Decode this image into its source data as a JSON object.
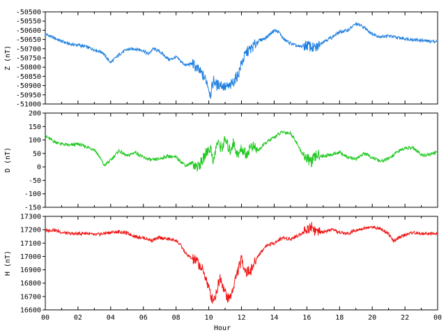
{
  "chart_data": [
    {
      "type": "line",
      "ylabel": "Z (nT)",
      "ylim": [
        -51000,
        -50500
      ],
      "yticks": [
        -50500,
        -50550,
        -50600,
        -50650,
        -50700,
        -50750,
        -50800,
        -50850,
        -50900,
        -50950,
        -51000
      ],
      "xlim": [
        0,
        24
      ],
      "color": "#1E7FE0",
      "grid": false,
      "x": [
        0,
        0.5,
        1,
        1.5,
        2,
        2.5,
        3,
        3.5,
        3.8,
        4.0,
        4.3,
        4.6,
        5.0,
        5.5,
        6.0,
        6.3,
        6.6,
        7.0,
        7.3,
        7.6,
        8.0,
        8.3,
        8.6,
        9.0,
        9.3,
        9.6,
        9.9,
        10.1,
        10.3,
        10.5,
        10.7,
        11.0,
        11.3,
        11.5,
        11.8,
        12.0,
        12.3,
        12.6,
        13.0,
        13.5,
        14.0,
        14.3,
        14.6,
        15.0,
        15.5,
        16.0,
        16.5,
        17.0,
        17.5,
        18.0,
        18.5,
        19.0,
        19.3,
        19.6,
        20.0,
        20.5,
        21.0,
        21.5,
        22.0,
        22.5,
        23.0,
        23.5,
        24.0
      ],
      "values": [
        -50620,
        -50640,
        -50660,
        -50675,
        -50680,
        -50690,
        -50705,
        -50720,
        -50755,
        -50775,
        -50750,
        -50725,
        -50705,
        -50700,
        -50710,
        -50730,
        -50700,
        -50715,
        -50740,
        -50760,
        -50745,
        -50770,
        -50790,
        -50780,
        -50810,
        -50840,
        -50880,
        -50950,
        -50870,
        -50900,
        -50890,
        -50910,
        -50905,
        -50880,
        -50840,
        -50780,
        -50720,
        -50700,
        -50660,
        -50640,
        -50600,
        -50610,
        -50650,
        -50670,
        -50690,
        -50680,
        -50700,
        -50660,
        -50640,
        -50610,
        -50600,
        -50565,
        -50575,
        -50590,
        -50620,
        -50635,
        -50630,
        -50640,
        -50645,
        -50650,
        -50655,
        -50660,
        -50660
      ]
    },
    {
      "type": "line",
      "ylabel": "D (nT)",
      "ylim": [
        -150,
        200
      ],
      "yticks": [
        200,
        150,
        100,
        50,
        0,
        -50,
        -100,
        -150
      ],
      "xlim": [
        0,
        24
      ],
      "color": "#1EC81E",
      "grid": false,
      "x": [
        0,
        0.5,
        1,
        1.5,
        2,
        2.5,
        3,
        3.3,
        3.6,
        4.0,
        4.5,
        5.0,
        5.5,
        6.0,
        6.5,
        7.0,
        7.5,
        8.0,
        8.3,
        8.6,
        9.0,
        9.3,
        9.6,
        9.9,
        10.1,
        10.3,
        10.5,
        10.8,
        11.0,
        11.3,
        11.5,
        11.8,
        12.0,
        12.3,
        12.6,
        13.0,
        13.5,
        14.0,
        14.5,
        15.0,
        15.3,
        15.6,
        16.0,
        16.3,
        16.6,
        17.0,
        17.5,
        18.0,
        18.5,
        19.0,
        19.5,
        20.0,
        20.5,
        21.0,
        21.5,
        22.0,
        22.5,
        23.0,
        23.5,
        24.0
      ],
      "values": [
        115,
        95,
        85,
        80,
        85,
        75,
        65,
        40,
        5,
        25,
        60,
        40,
        55,
        35,
        25,
        30,
        40,
        35,
        20,
        5,
        15,
        0,
        20,
        60,
        70,
        20,
        90,
        70,
        100,
        60,
        90,
        40,
        70,
        45,
        80,
        60,
        90,
        110,
        130,
        125,
        100,
        60,
        30,
        20,
        45,
        40,
        45,
        55,
        35,
        30,
        50,
        35,
        20,
        30,
        55,
        70,
        70,
        45,
        45,
        55
      ]
    },
    {
      "type": "line",
      "ylabel": "H (nT)",
      "xlabel": "Hour",
      "ylim": [
        16600,
        17300
      ],
      "yticks": [
        17300,
        17200,
        17100,
        17000,
        16900,
        16800,
        16700,
        16600
      ],
      "xlim": [
        0,
        24
      ],
      "xticks": [
        "00",
        "02",
        "04",
        "06",
        "08",
        "10",
        "12",
        "14",
        "16",
        "18",
        "20",
        "22",
        "00"
      ],
      "color": "#F01414",
      "grid": false,
      "x": [
        0,
        0.5,
        1,
        1.5,
        2,
        2.5,
        3,
        3.5,
        4,
        4.5,
        5,
        5.5,
        6,
        6.5,
        7,
        7.5,
        8,
        8.3,
        8.6,
        9.0,
        9.3,
        9.6,
        9.8,
        10.0,
        10.2,
        10.4,
        10.7,
        11.0,
        11.2,
        11.4,
        11.6,
        11.8,
        12.0,
        12.3,
        12.6,
        13.0,
        13.5,
        14.0,
        14.5,
        15.0,
        15.5,
        16.0,
        16.3,
        16.6,
        17.0,
        17.5,
        18.0,
        18.5,
        19.0,
        19.5,
        20.0,
        20.5,
        21.0,
        21.3,
        21.6,
        22.0,
        22.5,
        23.0,
        23.5,
        24.0
      ],
      "values": [
        17190,
        17200,
        17180,
        17170,
        17170,
        17175,
        17160,
        17170,
        17180,
        17185,
        17175,
        17150,
        17140,
        17120,
        17140,
        17130,
        17120,
        17080,
        17020,
        16980,
        16960,
        16900,
        16850,
        16760,
        16680,
        16700,
        16850,
        16730,
        16680,
        16720,
        16820,
        16900,
        16980,
        16880,
        16900,
        17000,
        17080,
        17100,
        17140,
        17130,
        17160,
        17200,
        17230,
        17180,
        17180,
        17200,
        17180,
        17170,
        17200,
        17210,
        17220,
        17210,
        17170,
        17110,
        17140,
        17160,
        17180,
        17170,
        17170,
        17170
      ]
    }
  ]
}
